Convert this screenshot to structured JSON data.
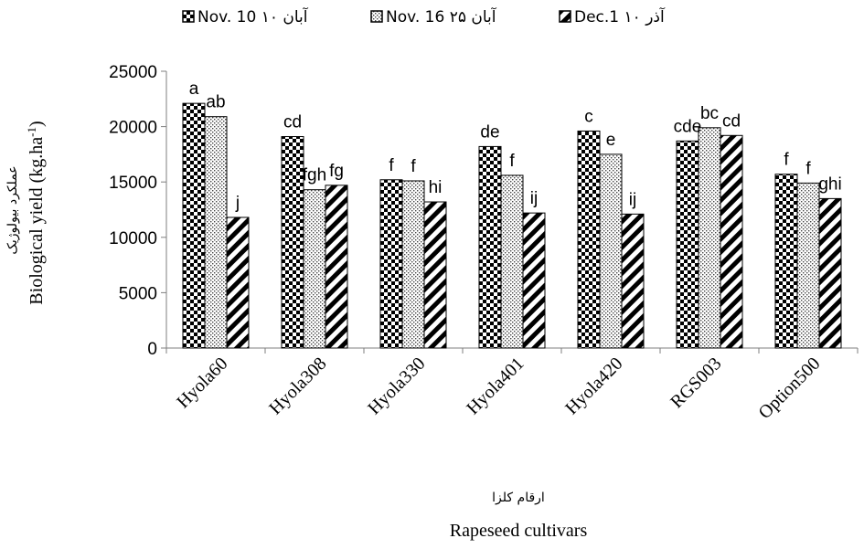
{
  "chart_data": {
    "type": "bar",
    "categories": [
      "Hyola60",
      "Hyola308",
      "Hyola330",
      "Hyola401",
      "Hyola420",
      "RGS003",
      "Option500"
    ],
    "series": [
      {
        "name": "Nov. 10 ۱۰ آبان",
        "pattern": "checker",
        "values": [
          22100,
          19100,
          15200,
          18200,
          19600,
          18700,
          15700
        ],
        "letters": [
          "a",
          "cd",
          "f",
          "de",
          "c",
          "cde",
          "f"
        ]
      },
      {
        "name": "Nov. 16 ۲۵ آبان",
        "pattern": "dots",
        "values": [
          20900,
          14300,
          15100,
          15600,
          17500,
          19900,
          14900
        ],
        "letters": [
          "ab",
          "fgh",
          "f",
          "f",
          "e",
          "bc",
          "f"
        ]
      },
      {
        "name": "Dec.1 ۱۰ آذر",
        "pattern": "diagonal",
        "values": [
          11800,
          14700,
          13200,
          12200,
          12100,
          19200,
          13500
        ],
        "letters": [
          "j",
          "fg",
          "hi",
          "ij",
          "ij",
          "cd",
          "ghi"
        ]
      }
    ],
    "ylim": [
      0,
      25000
    ],
    "yticks": [
      "0",
      "5000",
      "10000",
      "15000",
      "20000",
      "25000"
    ],
    "ylabel": "Biological yield (kg.ha-1)",
    "ylabel_fa": "عملکرد بیولوژیک",
    "xlabel": "Rapeseed cultivars",
    "xlabel_fa": "ارقام کلزا",
    "legend_position": "top",
    "grid": false
  }
}
